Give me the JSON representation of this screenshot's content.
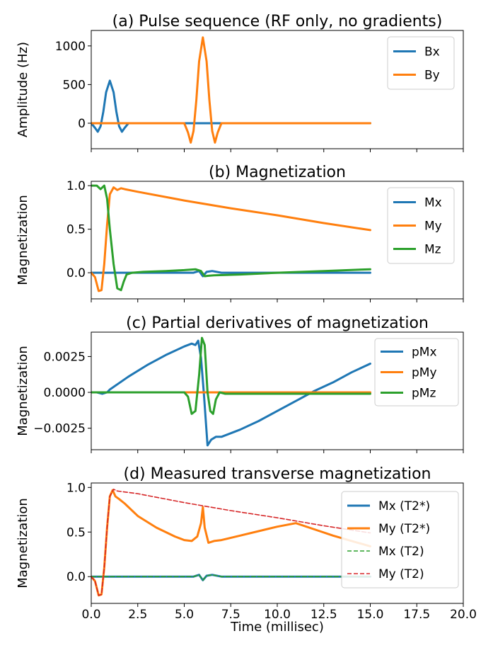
{
  "figure": {
    "xlabel": "Time (millisec)"
  },
  "chart_data": [
    {
      "type": "line",
      "title": "(a) Pulse sequence (RF only, no gradients)",
      "xlabel": "",
      "ylabel": "Amplitude (Hz)",
      "xlim": [
        0,
        20
      ],
      "ylim": [
        -330,
        1200
      ],
      "yticks": [
        0,
        500,
        1000
      ],
      "ytick_labels": [
        "0",
        "500",
        "1000"
      ],
      "show_xtick_labels": false,
      "legend": "top-right",
      "series": [
        {
          "name": "Bx",
          "color": "#1f77b4",
          "dashed": false,
          "x": [
            0,
            0.2,
            0.35,
            0.5,
            0.65,
            0.8,
            1.0,
            1.2,
            1.35,
            1.5,
            1.65,
            1.8,
            2.0,
            15
          ],
          "y": [
            0,
            -60,
            -110,
            -40,
            150,
            400,
            550,
            400,
            150,
            -40,
            -110,
            -60,
            0,
            0
          ]
        },
        {
          "name": "By",
          "color": "#ff7f0e",
          "dashed": false,
          "x": [
            0,
            5.0,
            5.2,
            5.35,
            5.5,
            5.65,
            5.8,
            6.0,
            6.2,
            6.35,
            6.5,
            6.65,
            6.8,
            7.0,
            15
          ],
          "y": [
            0,
            0,
            -120,
            -250,
            -100,
            300,
            800,
            1110,
            800,
            300,
            -100,
            -250,
            -120,
            0,
            0
          ]
        }
      ]
    },
    {
      "type": "line",
      "title": "(b) Magnetization",
      "xlabel": "",
      "ylabel": "Magnetization",
      "xlim": [
        0,
        20
      ],
      "ylim": [
        -0.3,
        1.05
      ],
      "yticks": [
        0,
        0.5,
        1.0
      ],
      "ytick_labels": [
        "0.0",
        "0.5",
        "1.0"
      ],
      "show_xtick_labels": false,
      "legend": "top-right",
      "series": [
        {
          "name": "Mx",
          "color": "#1f77b4",
          "dashed": false,
          "x": [
            0,
            5.5,
            5.8,
            6.0,
            6.2,
            6.5,
            7.0,
            15
          ],
          "y": [
            0,
            0,
            0.02,
            -0.04,
            0.01,
            0.02,
            0,
            0
          ]
        },
        {
          "name": "My",
          "color": "#ff7f0e",
          "dashed": false,
          "x": [
            0,
            0.2,
            0.4,
            0.55,
            0.7,
            0.85,
            1.0,
            1.2,
            1.4,
            1.6,
            1.8,
            2.5,
            5.0,
            7.5,
            10.0,
            12.5,
            15.0
          ],
          "y": [
            0,
            -0.05,
            -0.21,
            -0.2,
            0.1,
            0.55,
            0.9,
            0.98,
            0.95,
            0.97,
            0.96,
            0.93,
            0.83,
            0.74,
            0.66,
            0.57,
            0.49
          ]
        },
        {
          "name": "Mz",
          "color": "#2ca02c",
          "dashed": false,
          "x": [
            0,
            0.3,
            0.5,
            0.7,
            0.85,
            1.0,
            1.2,
            1.4,
            1.6,
            1.75,
            1.9,
            2.2,
            2.8,
            4.0,
            5.0,
            5.6,
            5.9,
            6.1,
            6.3,
            6.6,
            8.0,
            10.0,
            12.5,
            15.0
          ],
          "y": [
            1.0,
            1.0,
            0.96,
            1.0,
            0.85,
            0.5,
            0.1,
            -0.18,
            -0.2,
            -0.1,
            -0.02,
            0.0,
            0.01,
            0.02,
            0.03,
            0.04,
            0.02,
            -0.04,
            -0.035,
            -0.03,
            -0.02,
            0.0,
            0.02,
            0.04
          ]
        }
      ]
    },
    {
      "type": "line",
      "title": "(c) Partial derivatives of magnetization",
      "xlabel": "",
      "ylabel": "Magnetization",
      "xlim": [
        0,
        20
      ],
      "ylim": [
        -0.004,
        0.0042
      ],
      "yticks": [
        -0.0025,
        0,
        0.0025
      ],
      "ytick_labels": [
        "−0.0025",
        "0.0000",
        "0.0025"
      ],
      "show_xtick_labels": false,
      "legend": "top-right",
      "series": [
        {
          "name": "pMx",
          "color": "#1f77b4",
          "dashed": false,
          "x": [
            0,
            0.3,
            0.6,
            0.85,
            1.0,
            2.0,
            3.0,
            4.0,
            5.0,
            5.4,
            5.6,
            5.75,
            5.9,
            6.05,
            6.25,
            6.45,
            6.7,
            7.0,
            8.0,
            9.0,
            10.0,
            11.0,
            12.0,
            13.0,
            14.0,
            15.0
          ],
          "y": [
            0,
            0,
            -0.0001,
            0,
            0.0002,
            0.0011,
            0.0019,
            0.0026,
            0.0032,
            0.0034,
            0.0033,
            0.0036,
            0.0024,
            0.0,
            -0.0037,
            -0.0033,
            -0.0031,
            -0.0031,
            -0.0026,
            -0.002,
            -0.0013,
            -0.0006,
            0.0001,
            0.0007,
            0.0014,
            0.002
          ]
        },
        {
          "name": "pMy",
          "color": "#ff7f0e",
          "dashed": false,
          "x": [
            0,
            15
          ],
          "y": [
            0,
            0
          ]
        },
        {
          "name": "pMz",
          "color": "#2ca02c",
          "dashed": false,
          "x": [
            0,
            5.0,
            5.2,
            5.4,
            5.6,
            5.8,
            5.95,
            6.1,
            6.25,
            6.4,
            6.55,
            6.7,
            6.9,
            7.2,
            15.0
          ],
          "y": [
            0,
            0,
            -0.0003,
            -0.0015,
            -0.0013,
            0.0012,
            0.0038,
            0.0033,
            0.0,
            -0.0013,
            -0.0015,
            -0.0005,
            0.0,
            -0.0001,
            -0.0001
          ]
        }
      ]
    },
    {
      "type": "line",
      "title": "(d) Measured transverse magnetization",
      "xlabel": "Time (millisec)",
      "ylabel": "Magnetization",
      "xlim": [
        0,
        20
      ],
      "ylim": [
        -0.3,
        1.05
      ],
      "yticks": [
        0,
        0.5,
        1.0
      ],
      "ytick_labels": [
        "0.0",
        "0.5",
        "1.0"
      ],
      "xticks": [
        0,
        2.5,
        5,
        7.5,
        10,
        12.5,
        15,
        17.5,
        20
      ],
      "xtick_labels": [
        "0.0",
        "2.5",
        "5.0",
        "7.5",
        "10.0",
        "12.5",
        "15.0",
        "17.5",
        "20.0"
      ],
      "show_xtick_labels": true,
      "legend": "top-right",
      "series": [
        {
          "name": "Mx (T2*)",
          "color": "#1f77b4",
          "dashed": false,
          "x": [
            0,
            5.5,
            5.8,
            6.0,
            6.2,
            6.5,
            7.0,
            15
          ],
          "y": [
            0,
            0,
            0.02,
            -0.04,
            0.01,
            0.02,
            0,
            0
          ]
        },
        {
          "name": "My (T2*)",
          "color": "#ff7f0e",
          "dashed": false,
          "x": [
            0,
            0.2,
            0.4,
            0.55,
            0.7,
            0.85,
            1.0,
            1.15,
            1.3,
            1.5,
            1.8,
            2.5,
            3.5,
            4.5,
            5.0,
            5.4,
            5.7,
            5.9,
            6.0,
            6.1,
            6.3,
            6.6,
            7.0,
            8.0,
            9.0,
            10.0,
            11.0,
            12.0,
            13.0,
            14.0,
            15.0
          ],
          "y": [
            0,
            -0.05,
            -0.21,
            -0.2,
            0.1,
            0.55,
            0.9,
            0.97,
            0.9,
            0.87,
            0.82,
            0.68,
            0.55,
            0.45,
            0.41,
            0.4,
            0.45,
            0.6,
            0.78,
            0.55,
            0.38,
            0.4,
            0.41,
            0.46,
            0.51,
            0.56,
            0.6,
            0.53,
            0.46,
            0.4,
            0.34
          ]
        },
        {
          "name": "Mx (T2)",
          "color": "#2ca02c",
          "dashed": true,
          "x": [
            0,
            5.5,
            5.8,
            6.0,
            6.2,
            6.5,
            7.0,
            15
          ],
          "y": [
            0,
            0,
            0.02,
            -0.04,
            0.01,
            0.02,
            0,
            0
          ]
        },
        {
          "name": "My (T2)",
          "color": "#d62728",
          "dashed": true,
          "x": [
            0,
            0.2,
            0.4,
            0.55,
            0.7,
            0.85,
            1.0,
            1.2,
            1.4,
            2.5,
            5.0,
            7.5,
            10.0,
            12.5,
            15.0
          ],
          "y": [
            0,
            -0.05,
            -0.21,
            -0.2,
            0.1,
            0.55,
            0.9,
            0.98,
            0.96,
            0.93,
            0.83,
            0.74,
            0.66,
            0.57,
            0.49
          ]
        }
      ]
    }
  ]
}
